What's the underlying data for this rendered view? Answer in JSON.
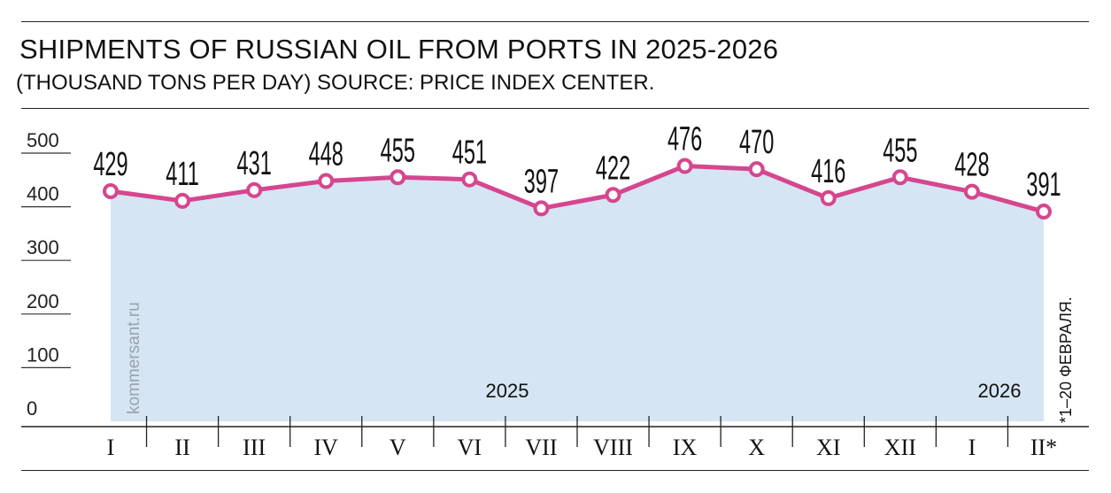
{
  "title": "SHIPMENTS OF RUSSIAN OIL FROM PORTS IN 2025-2026",
  "subtitle": "(THOUSAND TONS PER DAY) SOURCE: PRICE INDEX CENTER.",
  "watermark": "kommersant.ru",
  "footnote": "*1–20 ФЕВРАЛЯ.",
  "colors": {
    "line": "#d6468f",
    "area": "#d5e5f3",
    "marker_fill": "#ffffff"
  },
  "chart_data": {
    "type": "area",
    "title": "SHIPMENTS OF RUSSIAN OIL FROM PORTS IN 2025-2026",
    "subtitle": "(THOUSAND TONS PER DAY) SOURCE: PRICE INDEX CENTER.",
    "categories": [
      "I",
      "II",
      "III",
      "IV",
      "V",
      "VI",
      "VII",
      "VIII",
      "IX",
      "X",
      "XI",
      "XII",
      "I",
      "II*"
    ],
    "year_labels": [
      "2025",
      "2026"
    ],
    "series": [
      {
        "values": [
          429,
          411,
          431,
          448,
          455,
          451,
          397,
          422,
          476,
          470,
          416,
          455,
          428,
          391
        ]
      }
    ],
    "data_labels": [
      "429",
      "411",
      "431",
      "448",
      "455",
      "451",
      "397",
      "422",
      "476",
      "470",
      "416",
      "455",
      "428",
      "391"
    ],
    "yticks": [
      "0",
      "100",
      "200",
      "300",
      "400",
      "500"
    ],
    "ylim": [
      0,
      500
    ],
    "grid": false,
    "legend": "none"
  }
}
